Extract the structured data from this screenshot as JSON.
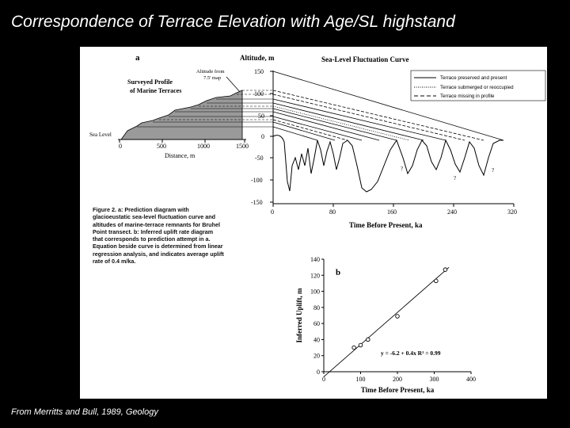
{
  "slide": {
    "title": "Correspondence of Terrace Elevation with Age/SL highstand",
    "credit": "From Merritts and Bull, 1989, Geology"
  },
  "figure": {
    "panel_a": {
      "label": "a",
      "profile_title_line1": "Surveyed Profile",
      "profile_title_line2": "of Marine Terraces",
      "altitude_from_line1": "Altitude from",
      "altitude_from_line2": "7.5' map",
      "sea_level_label": "Sea Level",
      "distance_axis_label": "Distance, m",
      "distance_ticks": [
        "0",
        "500",
        "1000",
        "1500"
      ],
      "altitude_axis_label": "Altitude, m",
      "altitude_ticks": [
        "150",
        "100",
        "50",
        "0",
        "-50",
        "-100",
        "-150"
      ],
      "curve_title": "Sea-Level Fluctuation Curve",
      "legend": [
        "Terrace preserved and present",
        "Terrace submerged or reoccupied",
        "Terrace missing in profile"
      ],
      "time_ticks": [
        "0",
        "80",
        "160",
        "240",
        "320"
      ],
      "time_axis_label": "Time Before Present, ka",
      "question_mark": "?"
    },
    "caption": "Figure 2. a: Prediction diagram with glacioeustatic sea-level fluctuation curve and altitudes of marine-terrace remnants for Bruhel Point transect. b: Inferred uplift rate diagram that corresponds to prediction attempt in a. Equation beside curve is determined from linear regression analysis, and indicates average uplift rate of 0.4 m/ka.",
    "panel_b": {
      "label": "b",
      "equation": "y = -6.2 + 0.4x   R² = 0.99"
    }
  },
  "chart_data": {
    "type": "scatter",
    "title": "",
    "xlabel": "Time Before Present, ka",
    "ylabel": "Inferred Uplift, m",
    "xlim": [
      0,
      400
    ],
    "ylim": [
      0,
      140
    ],
    "x_ticks": [
      "0",
      "100",
      "200",
      "300",
      "400"
    ],
    "y_ticks": [
      "0",
      "20",
      "40",
      "60",
      "80",
      "100",
      "120",
      "140"
    ],
    "points": [
      {
        "x": 82,
        "y": 30
      },
      {
        "x": 100,
        "y": 33
      },
      {
        "x": 120,
        "y": 40
      },
      {
        "x": 200,
        "y": 69
      },
      {
        "x": 305,
        "y": 113
      },
      {
        "x": 330,
        "y": 127
      }
    ],
    "regression": {
      "intercept": -6.2,
      "slope": 0.4,
      "r2": 0.99,
      "x_range": [
        0,
        340
      ]
    },
    "grid": false,
    "legend": "none"
  }
}
